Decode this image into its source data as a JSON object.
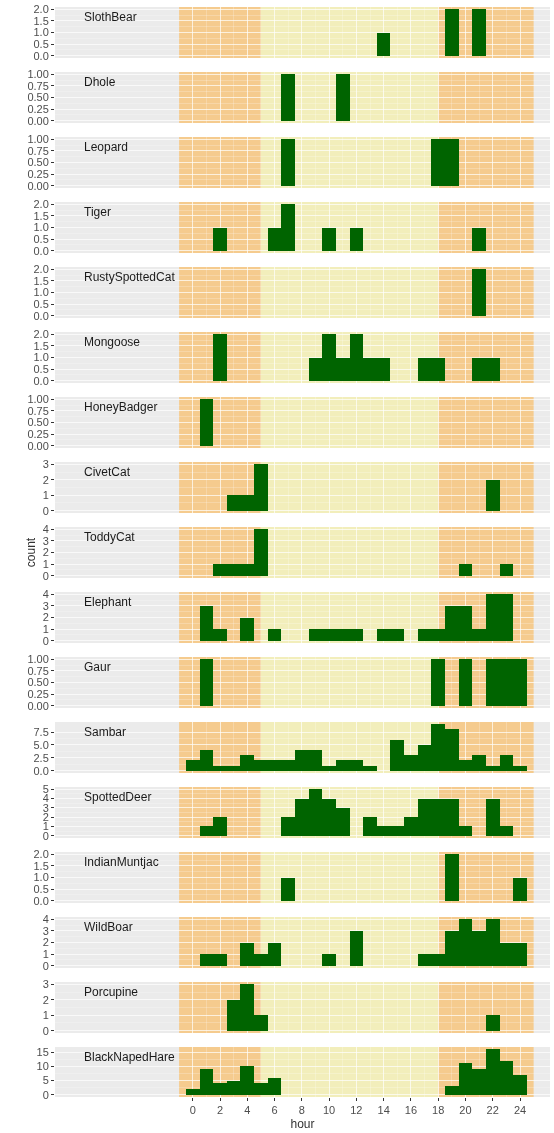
{
  "chart_data": [
    {
      "type": "histogram",
      "title": "SlothBear",
      "bins": [
        -0.5,
        0.5,
        1.5,
        2.5,
        3.5,
        4.5,
        5.5,
        6.5,
        7.5,
        8.5,
        9.5,
        10.5,
        11.5,
        12.5,
        13.5,
        14.5,
        15.5,
        16.5,
        17.5,
        18.5,
        19.5,
        20.5,
        21.5,
        22.5,
        23.5,
        24.5
      ],
      "values": [
        0,
        0,
        0,
        0,
        0,
        0,
        0,
        0,
        0,
        0,
        0,
        0,
        0,
        0,
        1,
        0,
        0,
        0,
        0,
        2,
        0,
        2,
        0,
        0,
        0
      ],
      "color": "#006400",
      "xlim": [
        -10.1,
        26.2
      ],
      "xticks": [
        0,
        2,
        4,
        6,
        8,
        10,
        12,
        14,
        16,
        18,
        20,
        22,
        24
      ],
      "ylim": [
        -0.1,
        2.1
      ],
      "yticks": [
        {
          "value": 0,
          "label": "0.0"
        },
        {
          "value": 0.5,
          "label": "0.5"
        },
        {
          "value": 1,
          "label": "1.0"
        },
        {
          "value": 1.5,
          "label": "1.5"
        },
        {
          "value": 2,
          "label": "2.0"
        }
      ],
      "tick_labels": "y",
      "grid": true,
      "bands": [
        {
          "axis": "x",
          "from": -1,
          "to": 5,
          "color": "#f5cb8e"
        },
        {
          "axis": "x",
          "from": 5,
          "to": 18,
          "color": "#f2eebb"
        },
        {
          "axis": "x",
          "from": 18,
          "to": 25,
          "color": "#f5cb8e"
        }
      ]
    },
    {
      "type": "histogram",
      "title": "Dhole",
      "bins": [
        -0.5,
        0.5,
        1.5,
        2.5,
        3.5,
        4.5,
        5.5,
        6.5,
        7.5,
        8.5,
        9.5,
        10.5,
        11.5,
        12.5,
        13.5,
        14.5,
        15.5,
        16.5,
        17.5,
        18.5,
        19.5,
        20.5,
        21.5,
        22.5,
        23.5,
        24.5
      ],
      "values": [
        0,
        0,
        0,
        0,
        0,
        0,
        0,
        1,
        0,
        0,
        0,
        1,
        0,
        0,
        0,
        0,
        0,
        0,
        0,
        0,
        0,
        0,
        0,
        0,
        0
      ],
      "color": "#006400",
      "xlim": [
        -10.1,
        26.2
      ],
      "xticks": [
        0,
        2,
        4,
        6,
        8,
        10,
        12,
        14,
        16,
        18,
        20,
        22,
        24
      ],
      "ylim": [
        -0.05,
        1.05
      ],
      "yticks": [
        {
          "value": 0,
          "label": "0.00"
        },
        {
          "value": 0.25,
          "label": "0.25"
        },
        {
          "value": 0.5,
          "label": "0.50"
        },
        {
          "value": 0.75,
          "label": "0.75"
        },
        {
          "value": 1,
          "label": "1.00"
        }
      ],
      "tick_labels": "y",
      "grid": true,
      "bands": [
        {
          "axis": "x",
          "from": -1,
          "to": 5,
          "color": "#f5cb8e"
        },
        {
          "axis": "x",
          "from": 5,
          "to": 18,
          "color": "#f2eebb"
        },
        {
          "axis": "x",
          "from": 18,
          "to": 25,
          "color": "#f5cb8e"
        }
      ]
    },
    {
      "type": "histogram",
      "title": "Leopard",
      "bins": [
        -0.5,
        0.5,
        1.5,
        2.5,
        3.5,
        4.5,
        5.5,
        6.5,
        7.5,
        8.5,
        9.5,
        10.5,
        11.5,
        12.5,
        13.5,
        14.5,
        15.5,
        16.5,
        17.5,
        18.5,
        19.5,
        20.5,
        21.5,
        22.5,
        23.5,
        24.5
      ],
      "values": [
        0,
        0,
        0,
        0,
        0,
        0,
        0,
        1,
        0,
        0,
        0,
        0,
        0,
        0,
        0,
        0,
        0,
        0,
        1,
        1,
        0,
        0,
        0,
        0,
        0
      ],
      "color": "#006400",
      "xlim": [
        -10.1,
        26.2
      ],
      "xticks": [
        0,
        2,
        4,
        6,
        8,
        10,
        12,
        14,
        16,
        18,
        20,
        22,
        24
      ],
      "ylim": [
        -0.05,
        1.05
      ],
      "yticks": [
        {
          "value": 0,
          "label": "0.00"
        },
        {
          "value": 0.25,
          "label": "0.25"
        },
        {
          "value": 0.5,
          "label": "0.50"
        },
        {
          "value": 0.75,
          "label": "0.75"
        },
        {
          "value": 1,
          "label": "1.00"
        }
      ],
      "tick_labels": "y",
      "grid": true,
      "bands": [
        {
          "axis": "x",
          "from": -1,
          "to": 5,
          "color": "#f5cb8e"
        },
        {
          "axis": "x",
          "from": 5,
          "to": 18,
          "color": "#f2eebb"
        },
        {
          "axis": "x",
          "from": 18,
          "to": 25,
          "color": "#f5cb8e"
        }
      ]
    },
    {
      "type": "histogram",
      "title": "Tiger",
      "bins": [
        -0.5,
        0.5,
        1.5,
        2.5,
        3.5,
        4.5,
        5.5,
        6.5,
        7.5,
        8.5,
        9.5,
        10.5,
        11.5,
        12.5,
        13.5,
        14.5,
        15.5,
        16.5,
        17.5,
        18.5,
        19.5,
        20.5,
        21.5,
        22.5,
        23.5,
        24.5
      ],
      "values": [
        0,
        0,
        1,
        0,
        0,
        0,
        1,
        2,
        0,
        0,
        1,
        0,
        1,
        0,
        0,
        0,
        0,
        0,
        0,
        0,
        0,
        1,
        0,
        0,
        0
      ],
      "color": "#006400",
      "xlim": [
        -10.1,
        26.2
      ],
      "xticks": [
        0,
        2,
        4,
        6,
        8,
        10,
        12,
        14,
        16,
        18,
        20,
        22,
        24
      ],
      "ylim": [
        -0.1,
        2.1
      ],
      "yticks": [
        {
          "value": 0,
          "label": "0.0"
        },
        {
          "value": 0.5,
          "label": "0.5"
        },
        {
          "value": 1,
          "label": "1.0"
        },
        {
          "value": 1.5,
          "label": "1.5"
        },
        {
          "value": 2,
          "label": "2.0"
        }
      ],
      "tick_labels": "y",
      "grid": true,
      "bands": [
        {
          "axis": "x",
          "from": -1,
          "to": 5,
          "color": "#f5cb8e"
        },
        {
          "axis": "x",
          "from": 5,
          "to": 18,
          "color": "#f2eebb"
        },
        {
          "axis": "x",
          "from": 18,
          "to": 25,
          "color": "#f5cb8e"
        }
      ]
    },
    {
      "type": "histogram",
      "title": "RustySpottedCat",
      "bins": [
        -0.5,
        0.5,
        1.5,
        2.5,
        3.5,
        4.5,
        5.5,
        6.5,
        7.5,
        8.5,
        9.5,
        10.5,
        11.5,
        12.5,
        13.5,
        14.5,
        15.5,
        16.5,
        17.5,
        18.5,
        19.5,
        20.5,
        21.5,
        22.5,
        23.5,
        24.5
      ],
      "values": [
        0,
        0,
        0,
        0,
        0,
        0,
        0,
        0,
        0,
        0,
        0,
        0,
        0,
        0,
        0,
        0,
        0,
        0,
        0,
        0,
        0,
        2,
        0,
        0,
        0
      ],
      "color": "#006400",
      "xlim": [
        -10.1,
        26.2
      ],
      "xticks": [
        0,
        2,
        4,
        6,
        8,
        10,
        12,
        14,
        16,
        18,
        20,
        22,
        24
      ],
      "ylim": [
        -0.1,
        2.1
      ],
      "yticks": [
        {
          "value": 0,
          "label": "0.0"
        },
        {
          "value": 0.5,
          "label": "0.5"
        },
        {
          "value": 1,
          "label": "1.0"
        },
        {
          "value": 1.5,
          "label": "1.5"
        },
        {
          "value": 2,
          "label": "2.0"
        }
      ],
      "tick_labels": "y",
      "grid": true,
      "bands": [
        {
          "axis": "x",
          "from": -1,
          "to": 5,
          "color": "#f5cb8e"
        },
        {
          "axis": "x",
          "from": 5,
          "to": 18,
          "color": "#f2eebb"
        },
        {
          "axis": "x",
          "from": 18,
          "to": 25,
          "color": "#f5cb8e"
        }
      ]
    },
    {
      "type": "histogram",
      "title": "Mongoose",
      "bins": [
        -0.5,
        0.5,
        1.5,
        2.5,
        3.5,
        4.5,
        5.5,
        6.5,
        7.5,
        8.5,
        9.5,
        10.5,
        11.5,
        12.5,
        13.5,
        14.5,
        15.5,
        16.5,
        17.5,
        18.5,
        19.5,
        20.5,
        21.5,
        22.5,
        23.5,
        24.5
      ],
      "values": [
        0,
        0,
        2,
        0,
        0,
        0,
        0,
        0,
        0,
        1,
        2,
        1,
        2,
        1,
        1,
        0,
        0,
        1,
        1,
        0,
        0,
        1,
        1,
        0,
        0
      ],
      "color": "#006400",
      "xlim": [
        -10.1,
        26.2
      ],
      "xticks": [
        0,
        2,
        4,
        6,
        8,
        10,
        12,
        14,
        16,
        18,
        20,
        22,
        24
      ],
      "ylim": [
        -0.1,
        2.1
      ],
      "yticks": [
        {
          "value": 0,
          "label": "0.0"
        },
        {
          "value": 0.5,
          "label": "0.5"
        },
        {
          "value": 1,
          "label": "1.0"
        },
        {
          "value": 1.5,
          "label": "1.5"
        },
        {
          "value": 2,
          "label": "2.0"
        }
      ],
      "tick_labels": "y",
      "grid": true,
      "bands": [
        {
          "axis": "x",
          "from": -1,
          "to": 5,
          "color": "#f5cb8e"
        },
        {
          "axis": "x",
          "from": 5,
          "to": 18,
          "color": "#f2eebb"
        },
        {
          "axis": "x",
          "from": 18,
          "to": 25,
          "color": "#f5cb8e"
        }
      ]
    },
    {
      "type": "histogram",
      "title": "HoneyBadger",
      "bins": [
        -0.5,
        0.5,
        1.5,
        2.5,
        3.5,
        4.5,
        5.5,
        6.5,
        7.5,
        8.5,
        9.5,
        10.5,
        11.5,
        12.5,
        13.5,
        14.5,
        15.5,
        16.5,
        17.5,
        18.5,
        19.5,
        20.5,
        21.5,
        22.5,
        23.5,
        24.5
      ],
      "values": [
        0,
        1,
        0,
        0,
        0,
        0,
        0,
        0,
        0,
        0,
        0,
        0,
        0,
        0,
        0,
        0,
        0,
        0,
        0,
        0,
        0,
        0,
        0,
        0,
        0
      ],
      "color": "#006400",
      "xlim": [
        -10.1,
        26.2
      ],
      "xticks": [
        0,
        2,
        4,
        6,
        8,
        10,
        12,
        14,
        16,
        18,
        20,
        22,
        24
      ],
      "ylim": [
        -0.05,
        1.05
      ],
      "yticks": [
        {
          "value": 0,
          "label": "0.00"
        },
        {
          "value": 0.25,
          "label": "0.25"
        },
        {
          "value": 0.5,
          "label": "0.50"
        },
        {
          "value": 0.75,
          "label": "0.75"
        },
        {
          "value": 1,
          "label": "1.00"
        }
      ],
      "tick_labels": "y",
      "grid": true,
      "bands": [
        {
          "axis": "x",
          "from": -1,
          "to": 5,
          "color": "#f5cb8e"
        },
        {
          "axis": "x",
          "from": 5,
          "to": 18,
          "color": "#f2eebb"
        },
        {
          "axis": "x",
          "from": 18,
          "to": 25,
          "color": "#f5cb8e"
        }
      ]
    },
    {
      "type": "histogram",
      "title": "CivetCat",
      "bins": [
        -0.5,
        0.5,
        1.5,
        2.5,
        3.5,
        4.5,
        5.5,
        6.5,
        7.5,
        8.5,
        9.5,
        10.5,
        11.5,
        12.5,
        13.5,
        14.5,
        15.5,
        16.5,
        17.5,
        18.5,
        19.5,
        20.5,
        21.5,
        22.5,
        23.5,
        24.5
      ],
      "values": [
        0,
        0,
        0,
        1,
        1,
        3,
        0,
        0,
        0,
        0,
        0,
        0,
        0,
        0,
        0,
        0,
        0,
        0,
        0,
        0,
        0,
        0,
        2,
        0,
        0
      ],
      "color": "#006400",
      "xlim": [
        -10.1,
        26.2
      ],
      "xticks": [
        0,
        2,
        4,
        6,
        8,
        10,
        12,
        14,
        16,
        18,
        20,
        22,
        24
      ],
      "ylim": [
        -0.15,
        3.15
      ],
      "yticks": [
        0,
        1,
        2,
        3
      ],
      "tick_labels": "y",
      "grid": true,
      "bands": [
        {
          "axis": "x",
          "from": -1,
          "to": 5,
          "color": "#f5cb8e"
        },
        {
          "axis": "x",
          "from": 5,
          "to": 18,
          "color": "#f2eebb"
        },
        {
          "axis": "x",
          "from": 18,
          "to": 25,
          "color": "#f5cb8e"
        }
      ]
    },
    {
      "type": "histogram",
      "title": "ToddyCat",
      "ylabel": "count",
      "bins": [
        -0.5,
        0.5,
        1.5,
        2.5,
        3.5,
        4.5,
        5.5,
        6.5,
        7.5,
        8.5,
        9.5,
        10.5,
        11.5,
        12.5,
        13.5,
        14.5,
        15.5,
        16.5,
        17.5,
        18.5,
        19.5,
        20.5,
        21.5,
        22.5,
        23.5,
        24.5
      ],
      "values": [
        0,
        0,
        1,
        1,
        1,
        4,
        0,
        0,
        0,
        0,
        0,
        0,
        0,
        0,
        0,
        0,
        0,
        0,
        0,
        0,
        1,
        0,
        0,
        1,
        0
      ],
      "color": "#006400",
      "xlim": [
        -10.1,
        26.2
      ],
      "xticks": [
        0,
        2,
        4,
        6,
        8,
        10,
        12,
        14,
        16,
        18,
        20,
        22,
        24
      ],
      "ylim": [
        -0.2,
        4.2
      ],
      "yticks": [
        0,
        1,
        2,
        3,
        4
      ],
      "tick_labels": "y",
      "grid": true,
      "bands": [
        {
          "axis": "x",
          "from": -1,
          "to": 5,
          "color": "#f5cb8e"
        },
        {
          "axis": "x",
          "from": 5,
          "to": 18,
          "color": "#f2eebb"
        },
        {
          "axis": "x",
          "from": 18,
          "to": 25,
          "color": "#f5cb8e"
        }
      ]
    },
    {
      "type": "histogram",
      "title": "Elephant",
      "bins": [
        -0.5,
        0.5,
        1.5,
        2.5,
        3.5,
        4.5,
        5.5,
        6.5,
        7.5,
        8.5,
        9.5,
        10.5,
        11.5,
        12.5,
        13.5,
        14.5,
        15.5,
        16.5,
        17.5,
        18.5,
        19.5,
        20.5,
        21.5,
        22.5,
        23.5,
        24.5
      ],
      "values": [
        0,
        3,
        1,
        0,
        2,
        0,
        1,
        0,
        0,
        1,
        1,
        1,
        1,
        0,
        1,
        1,
        0,
        1,
        1,
        3,
        3,
        1,
        4,
        4,
        0
      ],
      "color": "#006400",
      "xlim": [
        -10.1,
        26.2
      ],
      "xticks": [
        0,
        2,
        4,
        6,
        8,
        10,
        12,
        14,
        16,
        18,
        20,
        22,
        24
      ],
      "ylim": [
        -0.2,
        4.2
      ],
      "yticks": [
        0,
        1,
        2,
        3,
        4
      ],
      "tick_labels": "y",
      "grid": true,
      "bands": [
        {
          "axis": "x",
          "from": -1,
          "to": 5,
          "color": "#f5cb8e"
        },
        {
          "axis": "x",
          "from": 5,
          "to": 18,
          "color": "#f2eebb"
        },
        {
          "axis": "x",
          "from": 18,
          "to": 25,
          "color": "#f5cb8e"
        }
      ]
    },
    {
      "type": "histogram",
      "title": "Gaur",
      "bins": [
        -0.5,
        0.5,
        1.5,
        2.5,
        3.5,
        4.5,
        5.5,
        6.5,
        7.5,
        8.5,
        9.5,
        10.5,
        11.5,
        12.5,
        13.5,
        14.5,
        15.5,
        16.5,
        17.5,
        18.5,
        19.5,
        20.5,
        21.5,
        22.5,
        23.5,
        24.5
      ],
      "values": [
        0,
        1,
        0,
        0,
        0,
        0,
        0,
        0,
        0,
        0,
        0,
        0,
        0,
        0,
        0,
        0,
        0,
        0,
        1,
        0,
        1,
        0,
        1,
        1,
        1
      ],
      "color": "#006400",
      "xlim": [
        -10.1,
        26.2
      ],
      "xticks": [
        0,
        2,
        4,
        6,
        8,
        10,
        12,
        14,
        16,
        18,
        20,
        22,
        24
      ],
      "ylim": [
        -0.05,
        1.05
      ],
      "yticks": [
        {
          "value": 0,
          "label": "0.00"
        },
        {
          "value": 0.25,
          "label": "0.25"
        },
        {
          "value": 0.5,
          "label": "0.50"
        },
        {
          "value": 0.75,
          "label": "0.75"
        },
        {
          "value": 1,
          "label": "1.00"
        }
      ],
      "tick_labels": "y",
      "grid": true,
      "bands": [
        {
          "axis": "x",
          "from": -1,
          "to": 5,
          "color": "#f5cb8e"
        },
        {
          "axis": "x",
          "from": 5,
          "to": 18,
          "color": "#f2eebb"
        },
        {
          "axis": "x",
          "from": 18,
          "to": 25,
          "color": "#f5cb8e"
        }
      ]
    },
    {
      "type": "histogram",
      "title": "Sambar",
      "bins": [
        -0.5,
        0.5,
        1.5,
        2.5,
        3.5,
        4.5,
        5.5,
        6.5,
        7.5,
        8.5,
        9.5,
        10.5,
        11.5,
        12.5,
        13.5,
        14.5,
        15.5,
        16.5,
        17.5,
        18.5,
        19.5,
        20.5,
        21.5,
        22.5,
        23.5,
        24.5
      ],
      "values": [
        2,
        4,
        1,
        1,
        3,
        2,
        2,
        2,
        4,
        4,
        1,
        2,
        2,
        1,
        0,
        6,
        3,
        5,
        9,
        8,
        2,
        3,
        1,
        3,
        1
      ],
      "color": "#006400",
      "xlim": [
        -10.1,
        26.2
      ],
      "xticks": [
        0,
        2,
        4,
        6,
        8,
        10,
        12,
        14,
        16,
        18,
        20,
        22,
        24
      ],
      "ylim": [
        -0.45,
        9.45
      ],
      "yticks": [
        {
          "value": 0,
          "label": "0.0"
        },
        2.5,
        {
          "value": 5,
          "label": "5.0"
        },
        7.5
      ],
      "tick_labels": "y",
      "grid": true,
      "bands": [
        {
          "axis": "x",
          "from": -1,
          "to": 5,
          "color": "#f5cb8e"
        },
        {
          "axis": "x",
          "from": 5,
          "to": 18,
          "color": "#f2eebb"
        },
        {
          "axis": "x",
          "from": 18,
          "to": 25,
          "color": "#f5cb8e"
        }
      ]
    },
    {
      "type": "histogram",
      "title": "SpottedDeer",
      "bins": [
        -0.5,
        0.5,
        1.5,
        2.5,
        3.5,
        4.5,
        5.5,
        6.5,
        7.5,
        8.5,
        9.5,
        10.5,
        11.5,
        12.5,
        13.5,
        14.5,
        15.5,
        16.5,
        17.5,
        18.5,
        19.5,
        20.5,
        21.5,
        22.5,
        23.5,
        24.5
      ],
      "values": [
        0,
        1,
        2,
        0,
        0,
        0,
        0,
        2,
        4,
        5,
        4,
        3,
        0,
        2,
        1,
        1,
        2,
        4,
        4,
        4,
        1,
        0,
        4,
        1,
        0
      ],
      "color": "#006400",
      "xlim": [
        -10.1,
        26.2
      ],
      "xticks": [
        0,
        2,
        4,
        6,
        8,
        10,
        12,
        14,
        16,
        18,
        20,
        22,
        24
      ],
      "ylim": [
        -0.25,
        5.25
      ],
      "yticks": [
        0,
        1,
        2,
        3,
        4,
        5
      ],
      "tick_labels": "y",
      "grid": true,
      "bands": [
        {
          "axis": "x",
          "from": -1,
          "to": 5,
          "color": "#f5cb8e"
        },
        {
          "axis": "x",
          "from": 5,
          "to": 18,
          "color": "#f2eebb"
        },
        {
          "axis": "x",
          "from": 18,
          "to": 25,
          "color": "#f5cb8e"
        }
      ]
    },
    {
      "type": "histogram",
      "title": "IndianMuntjac",
      "bins": [
        -0.5,
        0.5,
        1.5,
        2.5,
        3.5,
        4.5,
        5.5,
        6.5,
        7.5,
        8.5,
        9.5,
        10.5,
        11.5,
        12.5,
        13.5,
        14.5,
        15.5,
        16.5,
        17.5,
        18.5,
        19.5,
        20.5,
        21.5,
        22.5,
        23.5,
        24.5
      ],
      "values": [
        0,
        0,
        0,
        0,
        0,
        0,
        0,
        1,
        0,
        0,
        0,
        0,
        0,
        0,
        0,
        0,
        0,
        0,
        0,
        2,
        0,
        0,
        0,
        0,
        1
      ],
      "color": "#006400",
      "xlim": [
        -10.1,
        26.2
      ],
      "xticks": [
        0,
        2,
        4,
        6,
        8,
        10,
        12,
        14,
        16,
        18,
        20,
        22,
        24
      ],
      "ylim": [
        -0.1,
        2.1
      ],
      "yticks": [
        {
          "value": 0,
          "label": "0.0"
        },
        {
          "value": 0.5,
          "label": "0.5"
        },
        {
          "value": 1,
          "label": "1.0"
        },
        {
          "value": 1.5,
          "label": "1.5"
        },
        {
          "value": 2,
          "label": "2.0"
        }
      ],
      "tick_labels": "y",
      "grid": true,
      "bands": [
        {
          "axis": "x",
          "from": -1,
          "to": 5,
          "color": "#f5cb8e"
        },
        {
          "axis": "x",
          "from": 5,
          "to": 18,
          "color": "#f2eebb"
        },
        {
          "axis": "x",
          "from": 18,
          "to": 25,
          "color": "#f5cb8e"
        }
      ]
    },
    {
      "type": "histogram",
      "title": "WildBoar",
      "bins": [
        -0.5,
        0.5,
        1.5,
        2.5,
        3.5,
        4.5,
        5.5,
        6.5,
        7.5,
        8.5,
        9.5,
        10.5,
        11.5,
        12.5,
        13.5,
        14.5,
        15.5,
        16.5,
        17.5,
        18.5,
        19.5,
        20.5,
        21.5,
        22.5,
        23.5,
        24.5
      ],
      "values": [
        0,
        1,
        1,
        0,
        2,
        1,
        2,
        0,
        0,
        0,
        1,
        0,
        3,
        0,
        0,
        0,
        0,
        1,
        1,
        3,
        4,
        3,
        4,
        2,
        2
      ],
      "color": "#006400",
      "xlim": [
        -10.1,
        26.2
      ],
      "xticks": [
        0,
        2,
        4,
        6,
        8,
        10,
        12,
        14,
        16,
        18,
        20,
        22,
        24
      ],
      "ylim": [
        -0.2,
        4.2
      ],
      "yticks": [
        0,
        1,
        2,
        3,
        4
      ],
      "tick_labels": "y",
      "grid": true,
      "bands": [
        {
          "axis": "x",
          "from": -1,
          "to": 5,
          "color": "#f5cb8e"
        },
        {
          "axis": "x",
          "from": 5,
          "to": 18,
          "color": "#f2eebb"
        },
        {
          "axis": "x",
          "from": 18,
          "to": 25,
          "color": "#f5cb8e"
        }
      ]
    },
    {
      "type": "histogram",
      "title": "Porcupine",
      "bins": [
        -0.5,
        0.5,
        1.5,
        2.5,
        3.5,
        4.5,
        5.5,
        6.5,
        7.5,
        8.5,
        9.5,
        10.5,
        11.5,
        12.5,
        13.5,
        14.5,
        15.5,
        16.5,
        17.5,
        18.5,
        19.5,
        20.5,
        21.5,
        22.5,
        23.5,
        24.5
      ],
      "values": [
        0,
        0,
        0,
        2,
        3,
        1,
        0,
        0,
        0,
        0,
        0,
        0,
        0,
        0,
        0,
        0,
        0,
        0,
        0,
        0,
        0,
        0,
        1,
        0,
        0
      ],
      "color": "#006400",
      "xlim": [
        -10.1,
        26.2
      ],
      "xticks": [
        0,
        2,
        4,
        6,
        8,
        10,
        12,
        14,
        16,
        18,
        20,
        22,
        24
      ],
      "ylim": [
        -0.15,
        3.15
      ],
      "yticks": [
        0,
        1,
        2,
        3
      ],
      "tick_labels": "y",
      "grid": true,
      "bands": [
        {
          "axis": "x",
          "from": -1,
          "to": 5,
          "color": "#f5cb8e"
        },
        {
          "axis": "x",
          "from": 5,
          "to": 18,
          "color": "#f2eebb"
        },
        {
          "axis": "x",
          "from": 18,
          "to": 25,
          "color": "#f5cb8e"
        }
      ]
    },
    {
      "type": "histogram",
      "title": "BlackNapedHare",
      "xlabel": "hour",
      "bins": [
        -0.5,
        0.5,
        1.5,
        2.5,
        3.5,
        4.5,
        5.5,
        6.5,
        7.5,
        8.5,
        9.5,
        10.5,
        11.5,
        12.5,
        13.5,
        14.5,
        15.5,
        16.5,
        17.5,
        18.5,
        19.5,
        20.5,
        21.5,
        22.5,
        23.5,
        24.5
      ],
      "values": [
        2,
        9,
        4,
        5,
        10,
        4,
        6,
        0,
        0,
        0,
        0,
        0,
        0,
        0,
        0,
        0,
        0,
        0,
        0,
        3,
        11,
        9,
        16,
        12,
        7
      ],
      "color": "#006400",
      "xlim": [
        -10.1,
        26.2
      ],
      "xticks": [
        0,
        2,
        4,
        6,
        8,
        10,
        12,
        14,
        16,
        18,
        20,
        22,
        24
      ],
      "ylim": [
        -0.8,
        16.8
      ],
      "yticks": [
        0,
        5,
        10,
        15
      ],
      "grid": true,
      "bands": [
        {
          "axis": "x",
          "from": -1,
          "to": 5,
          "color": "#f5cb8e"
        },
        {
          "axis": "x",
          "from": 5,
          "to": 18,
          "color": "#f2eebb"
        },
        {
          "axis": "x",
          "from": 18,
          "to": 25,
          "color": "#f5cb8e"
        }
      ]
    }
  ]
}
